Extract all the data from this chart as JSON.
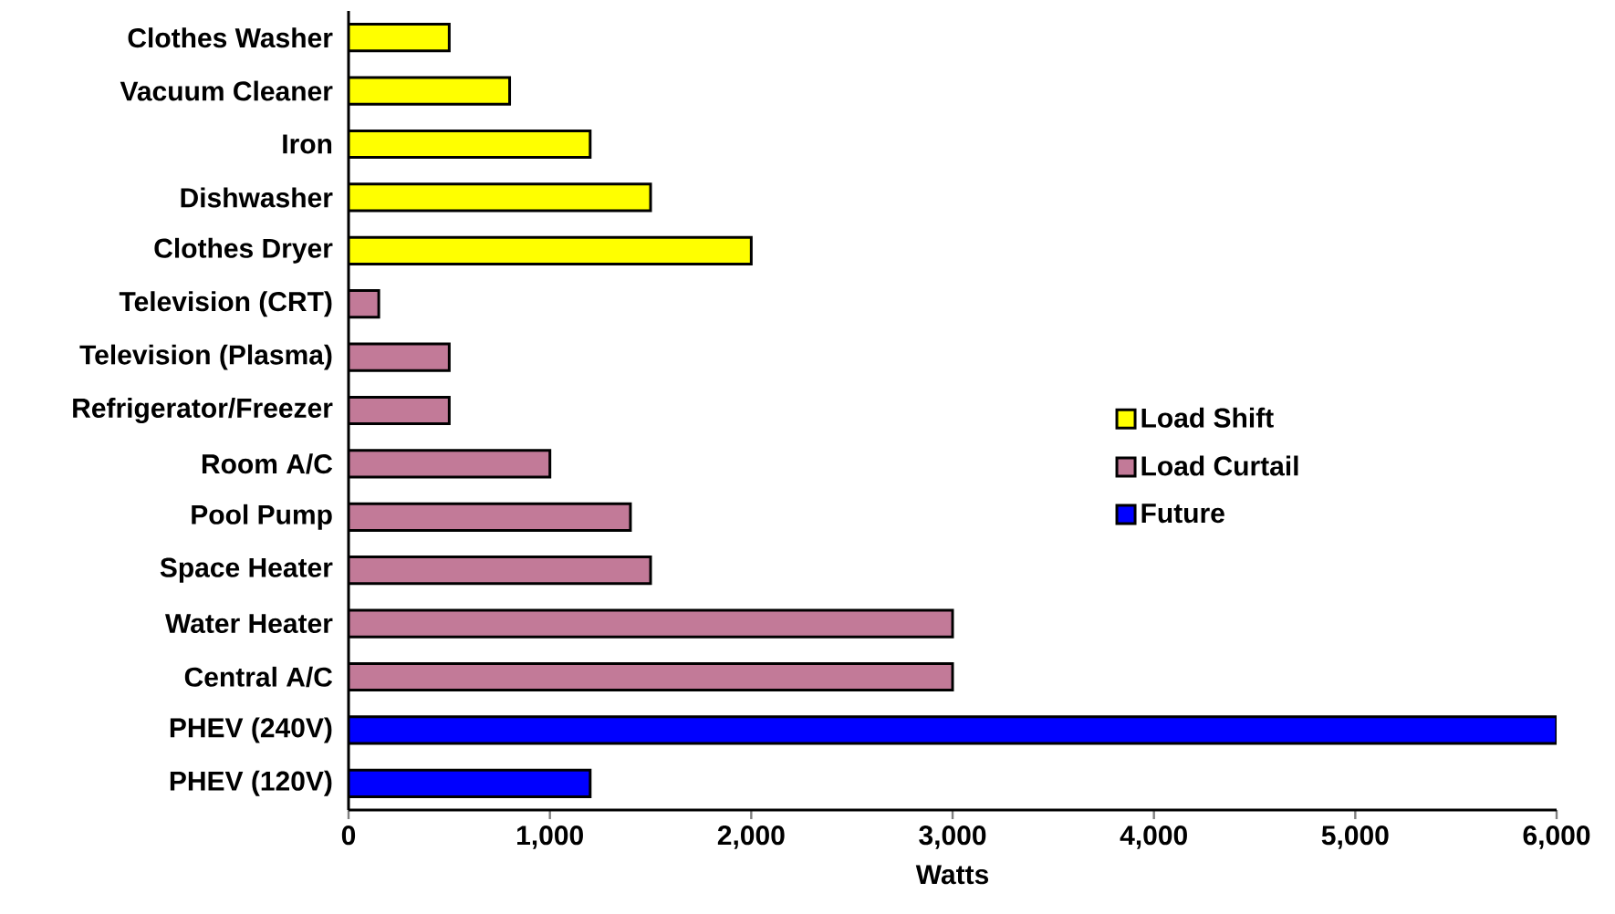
{
  "chart_data": {
    "type": "bar",
    "orientation": "horizontal",
    "xlabel": "Watts",
    "categories": [
      "Clothes Washer",
      "Vacuum Cleaner",
      "Iron",
      "Dishwasher",
      "Clothes Dryer",
      "Television (CRT)",
      "Television (Plasma)",
      "Refrigerator/Freezer",
      "Room A/C",
      "Pool Pump",
      "Space Heater",
      "Water Heater",
      "Central A/C",
      "PHEV (240V)",
      "PHEV (120V)"
    ],
    "series": [
      {
        "name": "Load Shift",
        "color": "#ffff00",
        "values": [
          500,
          800,
          1200,
          1500,
          2000,
          null,
          null,
          null,
          null,
          null,
          null,
          null,
          null,
          null,
          null
        ]
      },
      {
        "name": "Load Curtail",
        "color": "#c27a98",
        "values": [
          null,
          null,
          null,
          null,
          null,
          150,
          500,
          500,
          1000,
          1400,
          1500,
          3000,
          3000,
          null,
          null
        ]
      },
      {
        "name": "Future",
        "color": "#0000ff",
        "values": [
          null,
          null,
          null,
          null,
          null,
          null,
          null,
          null,
          null,
          null,
          null,
          null,
          null,
          6000,
          1200
        ]
      }
    ],
    "xlim": [
      0,
      6000
    ],
    "xticks": [
      0,
      {
        "value": 1000,
        "label": "1,000"
      },
      {
        "value": 2000,
        "label": "2,000"
      },
      {
        "value": 3000,
        "label": "3,000"
      },
      {
        "value": 4000,
        "label": "4,000"
      },
      {
        "value": 5000,
        "label": "5,000"
      },
      {
        "value": 6000,
        "label": "6,000"
      }
    ],
    "grid": false,
    "legend": "right"
  }
}
